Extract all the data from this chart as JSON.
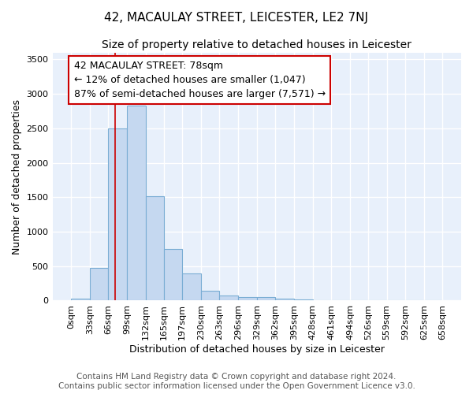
{
  "title": "42, MACAULAY STREET, LEICESTER, LE2 7NJ",
  "subtitle": "Size of property relative to detached houses in Leicester",
  "xlabel": "Distribution of detached houses by size in Leicester",
  "ylabel": "Number of detached properties",
  "bar_color": "#c5d8f0",
  "bar_edge_color": "#7aadd4",
  "bg_color": "#e8f0fb",
  "bg_color_right": "#dce8f7",
  "grid_color": "#ffffff",
  "annotation_box_color": "#cc0000",
  "property_line_color": "#cc0000",
  "property_line_x": 78,
  "bin_edges": [
    0,
    33,
    66,
    99,
    132,
    165,
    197,
    230,
    263,
    296,
    329,
    362,
    395,
    428,
    461,
    494,
    526,
    559,
    592,
    625,
    658
  ],
  "bar_heights": [
    25,
    470,
    2500,
    2830,
    1510,
    750,
    390,
    145,
    75,
    55,
    55,
    25,
    15,
    0,
    0,
    0,
    0,
    0,
    0,
    0
  ],
  "annotation_text_line1": "42 MACAULAY STREET: 78sqm",
  "annotation_text_line2": "← 12% of detached houses are smaller (1,047)",
  "annotation_text_line3": "87% of semi-detached houses are larger (7,571) →",
  "footer_line1": "Contains HM Land Registry data © Crown copyright and database right 2024.",
  "footer_line2": "Contains public sector information licensed under the Open Government Licence v3.0.",
  "ylim": [
    0,
    3600
  ],
  "yticks": [
    0,
    500,
    1000,
    1500,
    2000,
    2500,
    3000,
    3500
  ],
  "title_fontsize": 11,
  "subtitle_fontsize": 10,
  "axis_label_fontsize": 9,
  "tick_fontsize": 8,
  "annotation_fontsize": 9,
  "footer_fontsize": 7.5
}
